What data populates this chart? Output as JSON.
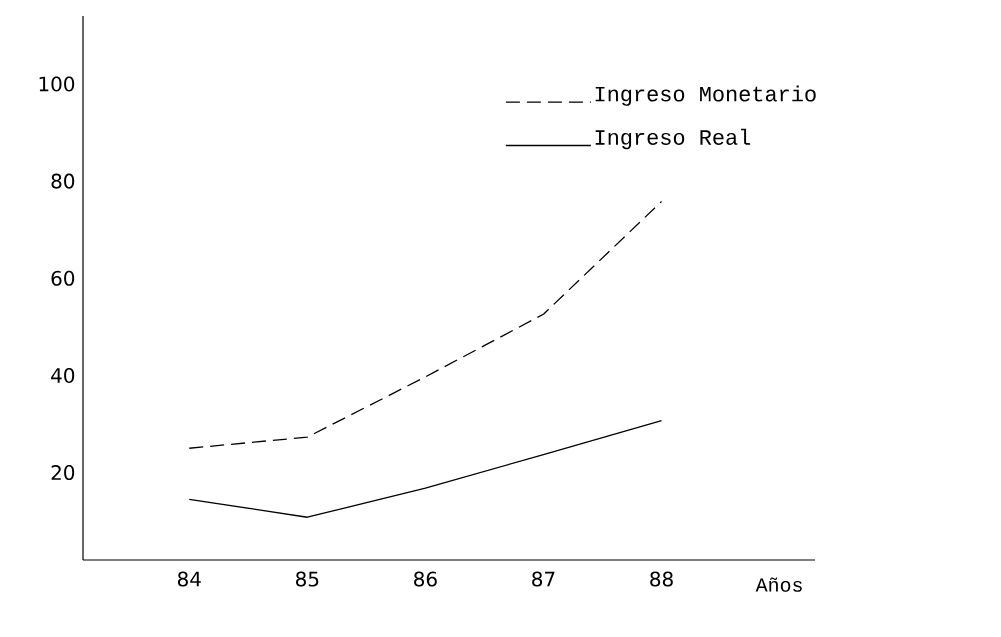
{
  "chart_data": {
    "type": "line",
    "xlabel": "Años",
    "categories": [
      "84",
      "85",
      "86",
      "87",
      "88"
    ],
    "series": [
      {
        "name": "Ingreso  Monetario",
        "color": "#000000",
        "line_style": "dashed",
        "values": [
          25,
          27.3,
          39.7,
          52.6,
          75.8
        ]
      },
      {
        "name": "Ingreso Real",
        "color": "#000000",
        "line_style": "solid",
        "values": [
          14.5,
          10.8,
          16.8,
          23.7,
          30.7
        ]
      }
    ],
    "ylim": [
      2,
      114
    ],
    "yticks": [
      20,
      40,
      60,
      80,
      100
    ],
    "legend": "top right"
  }
}
